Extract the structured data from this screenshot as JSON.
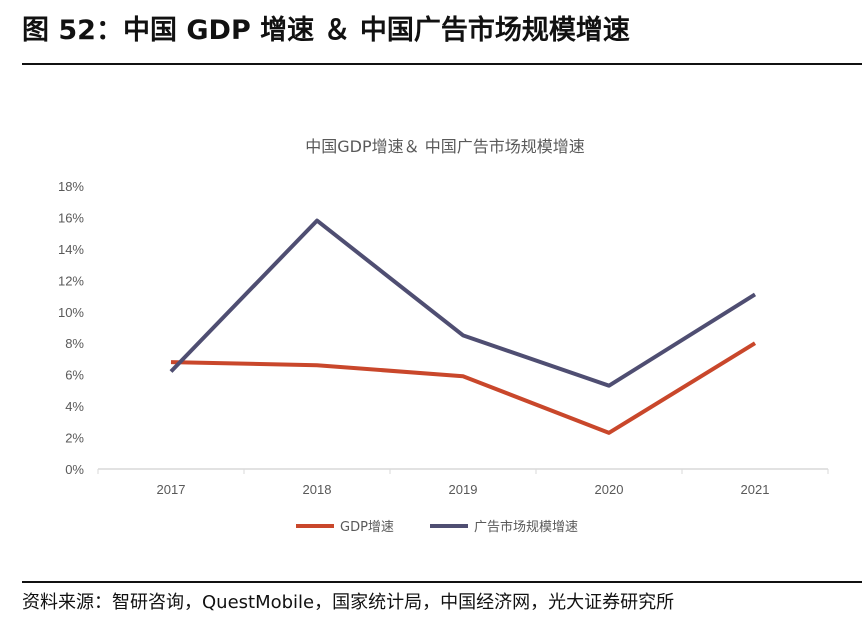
{
  "figure_title": "图 52：中国 GDP 增速 ＆ 中国广告市场规模增速",
  "source": "资料来源：智研咨询，QuestMobile，国家统计局，中国经济网，光大证券研究所",
  "chart_data": {
    "type": "line",
    "title": "中国GDP增速＆ 中国广告市场规模增速",
    "categories": [
      "2017",
      "2018",
      "2019",
      "2020",
      "2021"
    ],
    "ylim": [
      0,
      18
    ],
    "yticks": [
      "0%",
      "2%",
      "4%",
      "6%",
      "8%",
      "10%",
      "12%",
      "14%",
      "16%",
      "18%"
    ],
    "unit": "%",
    "grid": false,
    "legend_position": "bottom",
    "series": [
      {
        "name": "GDP增速",
        "color": "#C9472B",
        "values": [
          6.8,
          6.6,
          5.9,
          2.3,
          8.0
        ]
      },
      {
        "name": "广告市场规模增速",
        "color": "#4F4E72",
        "values": [
          6.2,
          15.8,
          8.5,
          5.3,
          11.1
        ]
      }
    ]
  }
}
